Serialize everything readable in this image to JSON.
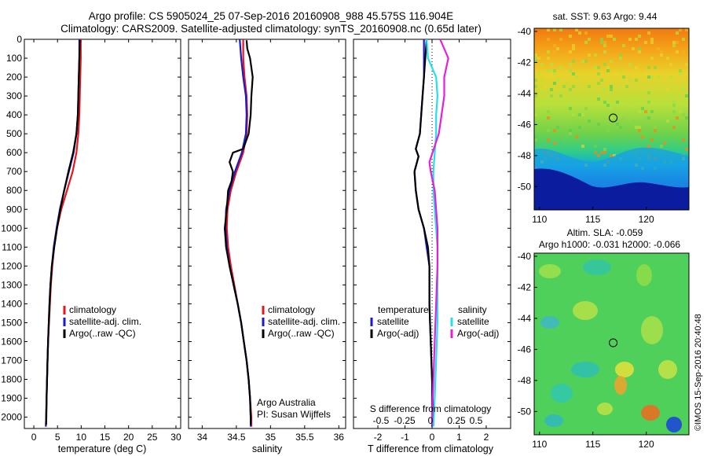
{
  "title": "Argo profile: CS 5905024_25 07-Sep-2016 20160908_988 45.575S 116.904E",
  "subtitle": "Climatology: CARS2009. Satellite-adjusted climatology: synTS_20160908.nc (0.65d later)",
  "credit": "©IMOS 15-Sep-2016 20:40:48",
  "colors": {
    "climatology": "#e8141c",
    "satellite": "#1a1acc",
    "argo": "#000000",
    "sal_satellite": "#22e0ee",
    "sal_argo": "#e61ed9"
  },
  "chart_data": [
    {
      "type": "line",
      "panel": "temperature",
      "xlabel": "temperature (deg C)",
      "ylabel": "",
      "xlim": [
        -2,
        31
      ],
      "ylim": [
        2060,
        0
      ],
      "xticks": [
        0,
        5,
        10,
        15,
        20,
        25,
        30
      ],
      "yticks": [
        0,
        100,
        200,
        300,
        400,
        500,
        600,
        700,
        800,
        900,
        1000,
        1100,
        1200,
        1300,
        1400,
        1500,
        1600,
        1700,
        1800,
        1900,
        2000
      ],
      "legend_position": "middle-center",
      "series": [
        {
          "name": "climatology",
          "color": "#e8141c",
          "points": [
            [
              9.9,
              0
            ],
            [
              9.9,
              100
            ],
            [
              9.8,
              200
            ],
            [
              9.7,
              300
            ],
            [
              9.6,
              400
            ],
            [
              9.4,
              500
            ],
            [
              9.0,
              600
            ],
            [
              8.2,
              700
            ],
            [
              7.0,
              800
            ],
            [
              5.8,
              900
            ],
            [
              4.9,
              1000
            ],
            [
              4.3,
              1100
            ],
            [
              3.9,
              1200
            ],
            [
              3.6,
              1300
            ],
            [
              3.4,
              1400
            ],
            [
              3.2,
              1500
            ],
            [
              3.0,
              1600
            ],
            [
              2.9,
              1700
            ],
            [
              2.8,
              1800
            ],
            [
              2.7,
              1900
            ],
            [
              2.6,
              2000
            ],
            [
              2.55,
              2050
            ]
          ]
        },
        {
          "name": "satellite-adj. clim.",
          "color": "#1a1acc",
          "points": [
            [
              9.6,
              0
            ],
            [
              9.6,
              100
            ],
            [
              9.5,
              200
            ],
            [
              9.4,
              300
            ],
            [
              9.3,
              400
            ],
            [
              9.0,
              500
            ],
            [
              8.4,
              600
            ],
            [
              7.4,
              700
            ],
            [
              6.4,
              800
            ],
            [
              5.5,
              900
            ],
            [
              4.8,
              1000
            ],
            [
              4.2,
              1100
            ],
            [
              3.8,
              1200
            ],
            [
              3.5,
              1300
            ],
            [
              3.3,
              1400
            ],
            [
              3.15,
              1500
            ],
            [
              3.0,
              1600
            ],
            [
              2.9,
              1700
            ],
            [
              2.8,
              1800
            ],
            [
              2.7,
              1900
            ],
            [
              2.6,
              2000
            ],
            [
              2.55,
              2050
            ]
          ]
        },
        {
          "name": "Argo(..raw -QC)",
          "color": "#000000",
          "points": [
            [
              9.7,
              5
            ],
            [
              9.6,
              100
            ],
            [
              9.5,
              200
            ],
            [
              9.4,
              300
            ],
            [
              9.3,
              400
            ],
            [
              9.0,
              500
            ],
            [
              8.3,
              600
            ],
            [
              7.3,
              700
            ],
            [
              6.4,
              800
            ],
            [
              5.6,
              900
            ],
            [
              4.9,
              1000
            ],
            [
              4.3,
              1100
            ],
            [
              3.8,
              1200
            ],
            [
              3.5,
              1300
            ],
            [
              3.3,
              1400
            ],
            [
              3.15,
              1500
            ],
            [
              3.0,
              1600
            ],
            [
              2.9,
              1700
            ],
            [
              2.8,
              1800
            ],
            [
              2.7,
              1900
            ],
            [
              2.65,
              2000
            ],
            [
              2.6,
              2040
            ]
          ]
        }
      ],
      "legend": [
        "climatology",
        "satellite-adj. clim.",
        "Argo(..raw -QC)"
      ]
    },
    {
      "type": "line",
      "panel": "salinity",
      "xlabel": "salinity",
      "xlim": [
        33.8,
        36.1
      ],
      "ylim": [
        2060,
        0
      ],
      "xticks": [
        34,
        34.5,
        35,
        35.5,
        36
      ],
      "legend_position": "bottom-right",
      "series": [
        {
          "name": "climatology",
          "color": "#e8141c",
          "points": [
            [
              34.6,
              0
            ],
            [
              34.6,
              100
            ],
            [
              34.62,
              200
            ],
            [
              34.65,
              300
            ],
            [
              34.66,
              400
            ],
            [
              34.65,
              500
            ],
            [
              34.6,
              600
            ],
            [
              34.5,
              700
            ],
            [
              34.42,
              800
            ],
            [
              34.37,
              900
            ],
            [
              34.36,
              1000
            ],
            [
              34.38,
              1100
            ],
            [
              34.42,
              1200
            ],
            [
              34.47,
              1300
            ],
            [
              34.52,
              1400
            ],
            [
              34.57,
              1500
            ],
            [
              34.61,
              1600
            ],
            [
              34.65,
              1700
            ],
            [
              34.68,
              1800
            ],
            [
              34.7,
              1900
            ],
            [
              34.72,
              2000
            ],
            [
              34.72,
              2050
            ]
          ]
        },
        {
          "name": "satellite-adj. clim.",
          "color": "#1a1acc",
          "points": [
            [
              34.55,
              0
            ],
            [
              34.57,
              100
            ],
            [
              34.6,
              200
            ],
            [
              34.64,
              300
            ],
            [
              34.65,
              400
            ],
            [
              34.64,
              500
            ],
            [
              34.58,
              600
            ],
            [
              34.48,
              700
            ],
            [
              34.4,
              800
            ],
            [
              34.35,
              900
            ],
            [
              34.34,
              1000
            ],
            [
              34.36,
              1100
            ],
            [
              34.4,
              1200
            ],
            [
              34.46,
              1300
            ],
            [
              34.52,
              1400
            ],
            [
              34.57,
              1500
            ],
            [
              34.61,
              1600
            ],
            [
              34.65,
              1700
            ],
            [
              34.68,
              1800
            ],
            [
              34.7,
              1900
            ],
            [
              34.71,
              2000
            ],
            [
              34.71,
              2050
            ]
          ]
        },
        {
          "name": "Argo(..raw -QC)",
          "color": "#000000",
          "points": [
            [
              34.65,
              5
            ],
            [
              34.66,
              50
            ],
            [
              34.7,
              100
            ],
            [
              34.72,
              150
            ],
            [
              34.74,
              200
            ],
            [
              34.72,
              300
            ],
            [
              34.71,
              400
            ],
            [
              34.68,
              500
            ],
            [
              34.6,
              580
            ],
            [
              34.45,
              600
            ],
            [
              34.4,
              650
            ],
            [
              34.45,
              700
            ],
            [
              34.43,
              750
            ],
            [
              34.38,
              800
            ],
            [
              34.36,
              900
            ],
            [
              34.33,
              1000
            ],
            [
              34.35,
              1100
            ],
            [
              34.4,
              1200
            ],
            [
              34.46,
              1300
            ],
            [
              34.52,
              1400
            ],
            [
              34.57,
              1500
            ],
            [
              34.61,
              1600
            ],
            [
              34.65,
              1700
            ],
            [
              34.68,
              1800
            ],
            [
              34.7,
              1900
            ],
            [
              34.71,
              2000
            ],
            [
              34.71,
              2040
            ]
          ]
        }
      ],
      "legend": [
        "climatology",
        "satellite-adj. clim.",
        "Argo(..raw -QC)"
      ],
      "annotation_1": "Argo Australia",
      "annotation_2": "PI: Susan Wijffels"
    },
    {
      "type": "line",
      "panel": "difference",
      "xlabel": "T difference from climatology",
      "top_label": "S difference from climatology",
      "xlim": [
        -2.9,
        2.9
      ],
      "ylim": [
        2060,
        0
      ],
      "xticks": [
        -2,
        -1,
        0,
        1,
        2
      ],
      "top_xticks": [
        "-0.5",
        "-0.25",
        "0",
        "0.25",
        "0.5"
      ],
      "legend_position": "middle-center",
      "legend_headers": [
        "temperature",
        "salinity"
      ],
      "series": [
        {
          "name": "temperature satellite",
          "color": "#1a1acc",
          "points": [
            [
              -0.3,
              0
            ],
            [
              -0.3,
              100
            ],
            [
              -0.3,
              200
            ],
            [
              -0.35,
              300
            ],
            [
              -0.4,
              400
            ],
            [
              -0.45,
              500
            ],
            [
              -0.6,
              580
            ],
            [
              -0.5,
              620
            ],
            [
              -0.65,
              700
            ],
            [
              -0.6,
              800
            ],
            [
              -0.5,
              900
            ],
            [
              -0.3,
              1000
            ],
            [
              -0.2,
              1100
            ],
            [
              -0.1,
              1200
            ],
            [
              -0.1,
              1400
            ],
            [
              -0.05,
              1600
            ],
            [
              0,
              1800
            ],
            [
              0,
              2000
            ],
            [
              0,
              2050
            ]
          ]
        },
        {
          "name": "temperature Argo(-adj)",
          "color": "#000000",
          "points": [
            [
              -0.2,
              0
            ],
            [
              -0.25,
              100
            ],
            [
              -0.3,
              200
            ],
            [
              -0.35,
              300
            ],
            [
              -0.4,
              400
            ],
            [
              -0.45,
              500
            ],
            [
              -0.6,
              580
            ],
            [
              -0.5,
              620
            ],
            [
              -0.65,
              700
            ],
            [
              -0.6,
              800
            ],
            [
              -0.5,
              900
            ],
            [
              -0.3,
              1000
            ],
            [
              -0.15,
              1100
            ],
            [
              -0.1,
              1200
            ],
            [
              -0.1,
              1400
            ],
            [
              -0.05,
              1600
            ],
            [
              0,
              1800
            ],
            [
              0.05,
              2000
            ],
            [
              0.05,
              2040
            ]
          ]
        },
        {
          "name": "salinity satellite",
          "color": "#22e0ee",
          "points": [
            [
              -0.2,
              0
            ],
            [
              -0.15,
              100
            ],
            [
              0.15,
              200
            ],
            [
              0.2,
              300
            ],
            [
              0.15,
              400
            ],
            [
              0.15,
              500
            ],
            [
              0.1,
              600
            ],
            [
              0.05,
              700
            ],
            [
              0.05,
              800
            ],
            [
              0.1,
              900
            ],
            [
              0.15,
              1000
            ],
            [
              0.2,
              1100
            ],
            [
              0.2,
              1300
            ],
            [
              0.2,
              1500
            ],
            [
              0.15,
              1700
            ],
            [
              0.1,
              1900
            ],
            [
              0.05,
              2050
            ]
          ]
        },
        {
          "name": "salinity Argo(-adj)",
          "color": "#e61ed9",
          "points": [
            [
              0.3,
              0
            ],
            [
              0.6,
              100
            ],
            [
              0.45,
              200
            ],
            [
              0.45,
              300
            ],
            [
              0.35,
              400
            ],
            [
              0.25,
              500
            ],
            [
              -0.1,
              650
            ],
            [
              -0.05,
              700
            ],
            [
              0.1,
              800
            ],
            [
              0.15,
              900
            ],
            [
              0.2,
              1000
            ],
            [
              0.2,
              1200
            ],
            [
              0.15,
              1400
            ],
            [
              0.1,
              1600
            ],
            [
              0.05,
              1800
            ],
            [
              0.0,
              2000
            ],
            [
              0,
              2040
            ]
          ]
        }
      ],
      "legend": [
        "satellite",
        "Argo(-adj)",
        "satellite",
        "Argo(-adj)"
      ]
    },
    {
      "type": "heatmap",
      "panel": "sst_map",
      "title": "sat. SST: 9.63 Argo: 9.44",
      "xlim": [
        109.5,
        124
      ],
      "ylim": [
        -51.5,
        -39.8
      ],
      "xticks": [
        110,
        115,
        120
      ],
      "yticks": [
        -40,
        -42,
        -44,
        -46,
        -48,
        -50
      ],
      "marker": [
        116.904,
        -45.575
      ]
    },
    {
      "type": "heatmap",
      "panel": "sla_map",
      "title": "Altim. SLA: -0.059",
      "subtitle": "Argo h1000: -0.031 h2000: -0.066",
      "xlim": [
        109.5,
        124
      ],
      "ylim": [
        -51.5,
        -39.8
      ],
      "xticks": [
        110,
        115,
        120
      ],
      "yticks": [
        -40,
        -42,
        -44,
        -46,
        -48,
        -50
      ],
      "marker": [
        116.904,
        -45.575
      ]
    }
  ]
}
